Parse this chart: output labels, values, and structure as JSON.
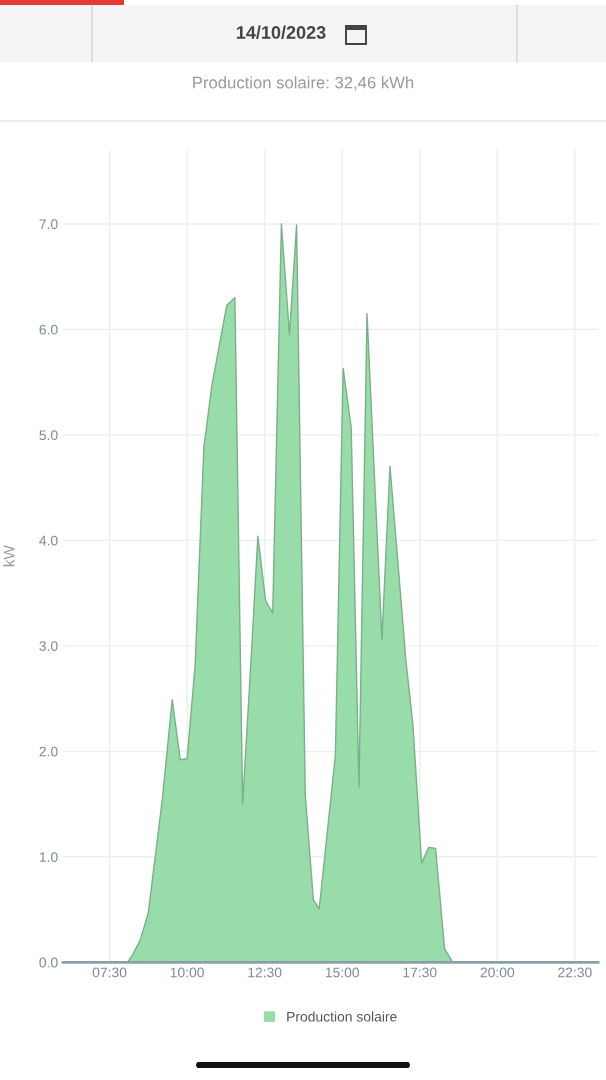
{
  "chart_data": {
    "type": "area",
    "title": "14/10/2023",
    "subtitle": "Production solaire: 32,46 kWh",
    "ylabel": "kW",
    "x": [
      6.0,
      8.08,
      8.24,
      8.49,
      8.75,
      9.2,
      9.52,
      9.78,
      10.0,
      10.26,
      10.54,
      10.8,
      11.28,
      11.54,
      11.79,
      12.08,
      12.28,
      12.53,
      12.76,
      13.04,
      13.3,
      13.53,
      13.81,
      14.07,
      14.26,
      14.78,
      15.03,
      15.29,
      15.54,
      15.8,
      16.28,
      16.54,
      16.79,
      17.05,
      17.28,
      17.56,
      17.79,
      18.01,
      18.3,
      18.56,
      23.15
    ],
    "series": [
      {
        "name": "Production solaire",
        "color": "#98dcaa",
        "values": [
          0,
          0,
          0.07,
          0.21,
          0.47,
          1.54,
          2.49,
          1.92,
          1.93,
          2.82,
          4.88,
          5.47,
          6.23,
          6.3,
          1.5,
          2.96,
          4.04,
          3.43,
          3.31,
          7.0,
          5.95,
          6.99,
          1.58,
          0.59,
          0.51,
          1.96,
          5.63,
          5.07,
          1.66,
          6.15,
          3.06,
          4.7,
          3.81,
          2.87,
          2.25,
          0.94,
          1.09,
          1.08,
          0.13,
          0,
          0
        ]
      }
    ],
    "xlim": [
      6.0,
      23.25
    ],
    "ylim": [
      0,
      7.7
    ],
    "xticks": [
      {
        "value": 7.5,
        "label": "07:30"
      },
      {
        "value": 10,
        "label": "10:00"
      },
      {
        "value": 12.5,
        "label": "12:30"
      },
      {
        "value": 15,
        "label": "15:00"
      },
      {
        "value": 17.5,
        "label": "17:30"
      },
      {
        "value": 20,
        "label": "20:00"
      },
      {
        "value": 22.5,
        "label": "22:30"
      }
    ],
    "yticks": [
      {
        "value": 0,
        "label": "0.0"
      },
      {
        "value": 1,
        "label": "1.0"
      },
      {
        "value": 2,
        "label": "2.0"
      },
      {
        "value": 3,
        "label": "3.0"
      },
      {
        "value": 4,
        "label": "4.0"
      },
      {
        "value": 5,
        "label": "5.0"
      },
      {
        "value": 6,
        "label": "6.0"
      },
      {
        "value": 7,
        "label": "7.0"
      }
    ],
    "grid": true,
    "legend": "bottom"
  }
}
